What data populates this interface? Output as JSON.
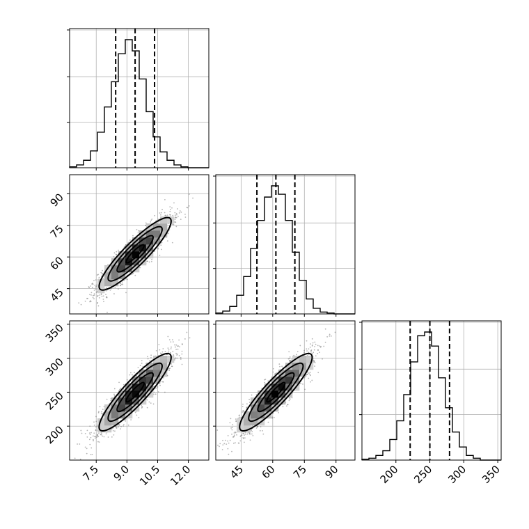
{
  "chart_data": {
    "type": "corner",
    "grid": true,
    "parameters": [
      {
        "tick_values": [
          7.5,
          9.0,
          10.5,
          12.0
        ],
        "tick_labels": [
          "7.5",
          "9.0",
          "10.5",
          "12.0"
        ],
        "range": [
          6.2,
          13.0
        ],
        "mean": 9.4,
        "sd": 0.88,
        "quantiles": [
          8.45,
          9.4,
          10.35
        ]
      },
      {
        "tick_values": [
          45,
          60,
          75,
          90
        ],
        "tick_labels": [
          "45",
          "60",
          "75",
          "90"
        ],
        "range": [
          33,
          99
        ],
        "mean": 61.5,
        "sd": 8.6,
        "quantiles": [
          52.5,
          61.5,
          70.5
        ]
      },
      {
        "tick_values": [
          200,
          250,
          300,
          350
        ],
        "tick_labels": [
          "200",
          "250",
          "300",
          "350"
        ],
        "range": [
          150,
          355
        ],
        "mean": 250,
        "sd": 28.5,
        "quantiles": [
          221,
          250,
          279
        ]
      }
    ],
    "histograms": [
      {
        "param": 0,
        "bins": [
          6.2,
          6.54,
          6.88,
          7.22,
          7.56,
          7.9,
          8.24,
          8.58,
          8.92,
          9.26,
          9.6,
          9.94,
          10.28,
          10.62,
          10.96,
          11.3,
          11.64,
          11.98,
          12.32,
          12.66,
          13.0
        ],
        "counts": [
          1,
          3,
          8,
          18,
          38,
          65,
          92,
          122,
          137,
          125,
          95,
          60,
          33,
          17,
          8,
          3,
          1,
          0,
          0,
          0
        ],
        "peak_frac": 0.92
      },
      {
        "param": 1,
        "bins": [
          33,
          36.3,
          39.6,
          42.9,
          46.2,
          49.5,
          52.8,
          56.1,
          59.4,
          62.7,
          66.0,
          69.3,
          72.6,
          75.9,
          79.2,
          82.5,
          85.8,
          89.1,
          92.4,
          95.7,
          99
        ],
        "counts": [
          1,
          3,
          8,
          20,
          40,
          70,
          100,
          125,
          137,
          128,
          100,
          66,
          36,
          16,
          6,
          2,
          1,
          0,
          0,
          0
        ],
        "peak_frac": 0.92
      },
      {
        "param": 2,
        "bins": [
          150,
          160.25,
          170.5,
          180.75,
          191,
          201.25,
          211.5,
          221.75,
          232,
          242.25,
          252.5,
          262.75,
          273,
          283.25,
          293.5,
          303.75,
          314,
          324.25,
          334.5,
          344.75,
          355
        ],
        "counts": [
          1,
          2,
          5,
          10,
          22,
          42,
          70,
          105,
          133,
          137,
          122,
          88,
          56,
          30,
          14,
          5,
          2,
          0,
          0,
          0
        ],
        "peak_frac": 0.92
      }
    ],
    "density_panels": [
      {
        "x_param": 0,
        "y_param": 1,
        "correlation": 0.9
      },
      {
        "x_param": 0,
        "y_param": 2,
        "correlation": 0.9
      },
      {
        "x_param": 1,
        "y_param": 2,
        "correlation": 0.9
      }
    ],
    "contour_levels_sigma": [
      0.5,
      1.0,
      1.5,
      2.0
    ],
    "colors": {
      "line": "#000000",
      "grid": "#b0b0b0",
      "points": "#5a5a5a",
      "density_dark": "#000000",
      "density_light": "#f2f2f2"
    }
  }
}
